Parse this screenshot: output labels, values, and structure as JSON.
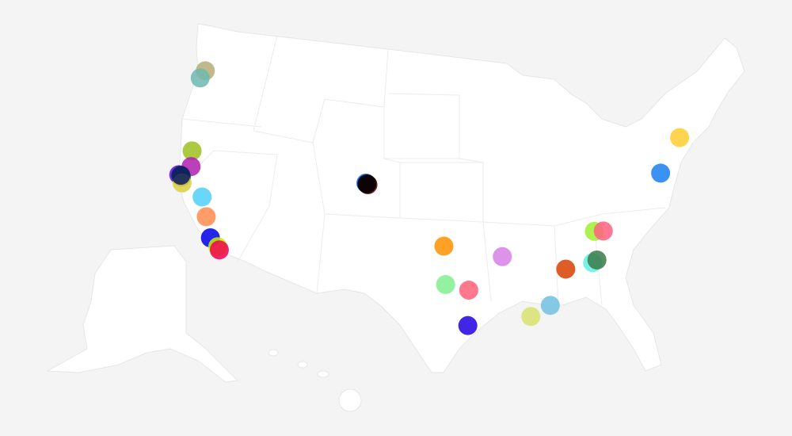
{
  "markers": [
    {
      "lon": -122.7,
      "lat": 45.5,
      "color": "#b5ad78"
    },
    {
      "lon": -123.0,
      "lat": 44.9,
      "color": "#6fb8b0"
    },
    {
      "lon": -121.8,
      "lat": 39.7,
      "color": "#9fc020"
    },
    {
      "lon": -121.5,
      "lat": 38.6,
      "color": "#b01eb0"
    },
    {
      "lon": -122.4,
      "lat": 37.8,
      "color": "#5a10d8"
    },
    {
      "lon": -122.1,
      "lat": 37.7,
      "color": "#1a6a40"
    },
    {
      "lon": -121.9,
      "lat": 37.3,
      "color": "#d8d040"
    },
    {
      "lon": -122.2,
      "lat": 37.8,
      "color": "#0a1a60"
    },
    {
      "lon": -119.8,
      "lat": 36.7,
      "color": "#50d0f8"
    },
    {
      "lon": -119.0,
      "lat": 35.4,
      "color": "#ff8c50"
    },
    {
      "lon": -118.2,
      "lat": 34.0,
      "color": "#0000e8"
    },
    {
      "lon": -117.4,
      "lat": 33.5,
      "color": "#c8f000"
    },
    {
      "lon": -117.2,
      "lat": 33.3,
      "color": "#f00050"
    },
    {
      "lon": -105.0,
      "lat": 39.7,
      "color": "#1060f0"
    },
    {
      "lon": -104.8,
      "lat": 39.6,
      "color": "#600000"
    },
    {
      "lon": -104.9,
      "lat": 39.65,
      "color": "#000000"
    },
    {
      "lon": -97.5,
      "lat": 35.5,
      "color": "#ff9000"
    },
    {
      "lon": -97.3,
      "lat": 32.75,
      "color": "#80f090"
    },
    {
      "lon": -95.3,
      "lat": 32.35,
      "color": "#ff6078"
    },
    {
      "lon": -95.4,
      "lat": 29.8,
      "color": "#2000e0"
    },
    {
      "lon": -92.3,
      "lat": 34.7,
      "color": "#d880e8"
    },
    {
      "lon": -90.1,
      "lat": 30.3,
      "color": "#d8e070"
    },
    {
      "lon": -88.4,
      "lat": 31.0,
      "color": "#70c0e0"
    },
    {
      "lon": -86.8,
      "lat": 33.5,
      "color": "#d84000"
    },
    {
      "lon": -84.4,
      "lat": 33.75,
      "color": "#60f0e0"
    },
    {
      "lon": -84.0,
      "lat": 33.9,
      "color": "#3a7a48"
    },
    {
      "lon": -83.9,
      "lat": 35.96,
      "color": "#a0f030"
    },
    {
      "lon": -83.1,
      "lat": 35.9,
      "color": "#ff6080"
    },
    {
      "lon": -77.0,
      "lat": 39.3,
      "color": "#1880f0"
    },
    {
      "lon": -74.5,
      "lat": 41.5,
      "color": "#ffcc30"
    }
  ]
}
